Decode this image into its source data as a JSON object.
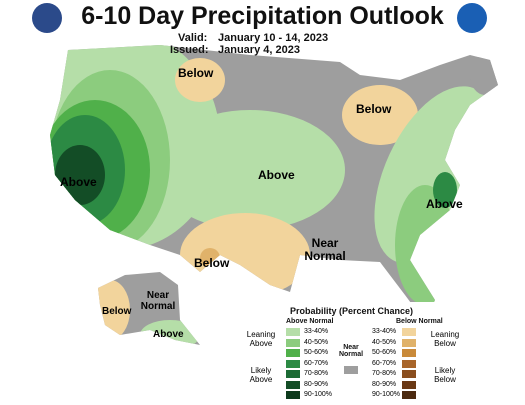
{
  "header": {
    "title": "6-10 Day Precipitation Outlook",
    "valid_label": "Valid:",
    "valid": "January 10 - 14, 2023",
    "issued_label": "Issued:",
    "issued": "January 4, 2023"
  },
  "map_labels": [
    "Below",
    "Below",
    "Above",
    "Above",
    "Above",
    "Below",
    "Near Normal",
    "Below",
    "Near Normal",
    "Above"
  ],
  "legend": {
    "title": "Probability (Percent Chance)",
    "above_heading": "Above Normal",
    "below_heading": "Below Normal",
    "near_heading": "Near Normal",
    "near_color": "#9e9e9e",
    "groups": [
      "Leaning Above",
      "Likely Above",
      "Leaning Below",
      "Likely Below"
    ],
    "above": [
      {
        "range": "33-40%",
        "color": "#b5dea8"
      },
      {
        "range": "40-50%",
        "color": "#8ccc7e"
      },
      {
        "range": "50-60%",
        "color": "#50b04a"
      },
      {
        "range": "60-70%",
        "color": "#2c8a44"
      },
      {
        "range": "70-80%",
        "color": "#1c6b34"
      },
      {
        "range": "80-90%",
        "color": "#134d26"
      },
      {
        "range": "90-100%",
        "color": "#0d3a1c"
      }
    ],
    "below": [
      {
        "range": "33-40%",
        "color": "#f2d49c"
      },
      {
        "range": "40-50%",
        "color": "#e0b26a"
      },
      {
        "range": "50-60%",
        "color": "#c98a3a"
      },
      {
        "range": "60-70%",
        "color": "#a8652a"
      },
      {
        "range": "70-80%",
        "color": "#8a4e1e"
      },
      {
        "range": "80-90%",
        "color": "#6a3814"
      },
      {
        "range": "90-100%",
        "color": "#4c2a10"
      }
    ]
  }
}
